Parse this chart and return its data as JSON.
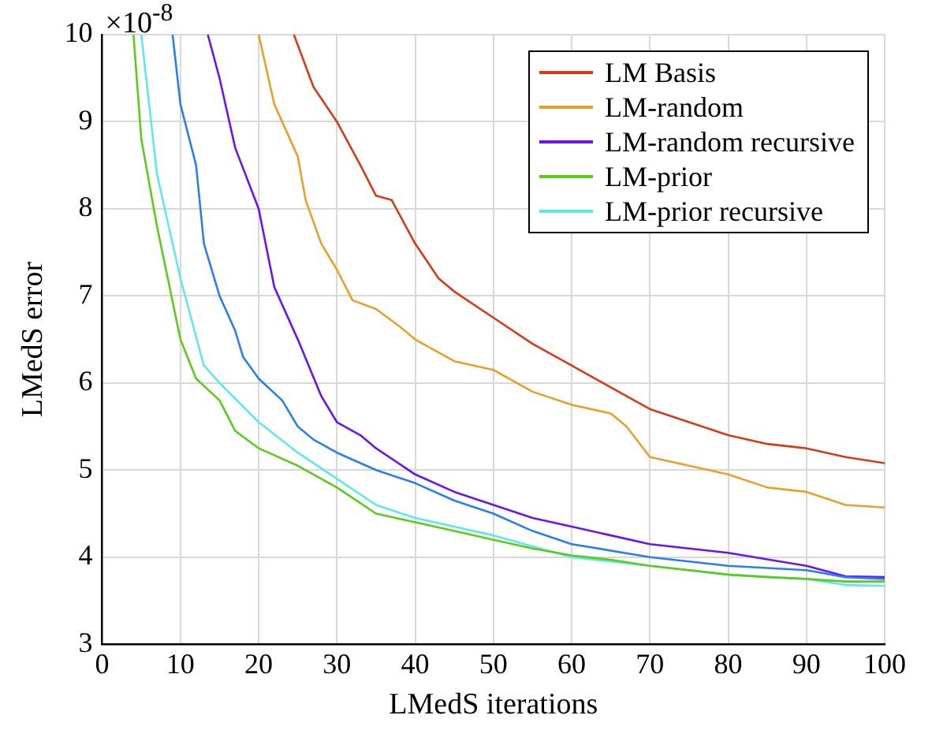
{
  "chart_data": {
    "type": "line",
    "xlabel": "LMedS iterations",
    "ylabel": "LMedS error",
    "annotations": [
      "×10$^{-8}$"
    ],
    "xlim": [
      0,
      100
    ],
    "ylim": [
      3,
      10
    ],
    "xticks": [
      0,
      10,
      20,
      30,
      40,
      50,
      60,
      70,
      80,
      90,
      100
    ],
    "yticks": [
      3,
      4,
      5,
      6,
      7,
      8,
      9,
      10
    ],
    "grid": true,
    "legend": "top right",
    "marker": "none",
    "line_style": "solid",
    "series": [
      {
        "color": "#2a7ff0",
        "x": [
          9,
          10,
          12,
          13,
          15,
          17,
          18,
          20,
          23,
          25,
          27,
          30,
          35,
          40,
          45,
          50,
          55,
          60,
          70,
          80,
          90,
          95,
          100
        ],
        "values": [
          10,
          9.2,
          8.5,
          7.6,
          7.0,
          6.6,
          6.3,
          6.05,
          5.8,
          5.5,
          5.35,
          5.2,
          5.0,
          4.85,
          4.65,
          4.5,
          4.3,
          4.15,
          4.0,
          3.9,
          3.85,
          3.77,
          3.75
        ]
      },
      {
        "name": "LM Basis",
        "color": "#d63a16",
        "x": [
          24.5,
          27,
          30,
          33,
          35,
          37,
          40,
          43,
          45,
          50,
          55,
          60,
          65,
          70,
          75,
          80,
          85,
          90,
          95,
          100
        ],
        "values": [
          10,
          9.4,
          9.0,
          8.5,
          8.15,
          8.1,
          7.6,
          7.2,
          7.05,
          6.75,
          6.45,
          6.2,
          5.95,
          5.7,
          5.55,
          5.4,
          5.3,
          5.25,
          5.15,
          5.08
        ]
      },
      {
        "name": "LM-random",
        "color": "#e8a02a",
        "x": [
          20,
          22,
          25,
          26,
          28,
          30,
          32,
          35,
          38,
          40,
          45,
          50,
          55,
          60,
          65,
          67,
          70,
          75,
          80,
          85,
          90,
          95,
          100
        ],
        "values": [
          10,
          9.2,
          8.6,
          8.1,
          7.6,
          7.3,
          6.95,
          6.85,
          6.65,
          6.5,
          6.25,
          6.15,
          5.9,
          5.75,
          5.65,
          5.5,
          5.15,
          5.05,
          4.95,
          4.8,
          4.75,
          4.6,
          4.57
        ]
      },
      {
        "name": "LM-random recursive",
        "color": "#6a14f0",
        "x": [
          13.5,
          15,
          17,
          20,
          22,
          25,
          28,
          30,
          33,
          35,
          40,
          45,
          50,
          55,
          60,
          65,
          70,
          80,
          90,
          95,
          100
        ],
        "values": [
          10,
          9.5,
          8.7,
          8.0,
          7.1,
          6.5,
          5.85,
          5.55,
          5.4,
          5.25,
          4.95,
          4.75,
          4.6,
          4.45,
          4.35,
          4.25,
          4.15,
          4.05,
          3.9,
          3.78,
          3.77
        ]
      },
      {
        "name": "LM-prior",
        "color": "#5ecb1a",
        "x": [
          4,
          5,
          7,
          10,
          12,
          15,
          17,
          20,
          25,
          30,
          35,
          40,
          45,
          50,
          55,
          60,
          65,
          70,
          75,
          80,
          85,
          90,
          95,
          100
        ],
        "values": [
          10,
          8.8,
          7.8,
          6.5,
          6.05,
          5.8,
          5.45,
          5.25,
          5.05,
          4.8,
          4.5,
          4.4,
          4.3,
          4.2,
          4.1,
          4.02,
          3.97,
          3.9,
          3.85,
          3.8,
          3.77,
          3.75,
          3.72,
          3.72
        ]
      },
      {
        "name": "LM-prior recursive",
        "color": "#5de8f0",
        "x": [
          5,
          7,
          10,
          13,
          15,
          20,
          25,
          30,
          35,
          40,
          45,
          50,
          60,
          70,
          80,
          90,
          95,
          100
        ],
        "values": [
          10,
          8.4,
          7.2,
          6.2,
          6.0,
          5.55,
          5.2,
          4.9,
          4.6,
          4.45,
          4.35,
          4.25,
          4.0,
          3.9,
          3.8,
          3.75,
          3.68,
          3.67
        ]
      }
    ]
  }
}
